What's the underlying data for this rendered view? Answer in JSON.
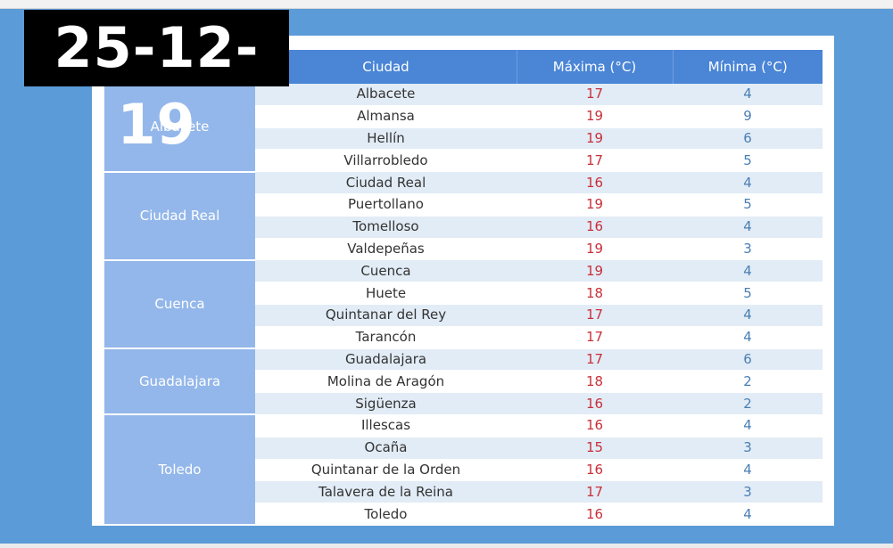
{
  "date": "25-12-19",
  "table": {
    "headers": [
      "Ciudad",
      "Máxima (°C)",
      "Mínima (°C)"
    ],
    "provinces": [
      {
        "name": "Albacete",
        "rows": [
          {
            "city": "Albacete",
            "max": "17",
            "min": "4"
          },
          {
            "city": "Almansa",
            "max": "19",
            "min": "9"
          },
          {
            "city": "Hellín",
            "max": "19",
            "min": "6"
          },
          {
            "city": "Villarrobledo",
            "max": "17",
            "min": "5"
          }
        ]
      },
      {
        "name": "Ciudad Real",
        "rows": [
          {
            "city": "Ciudad Real",
            "max": "16",
            "min": "4"
          },
          {
            "city": "Puertollano",
            "max": "19",
            "min": "5"
          },
          {
            "city": "Tomelloso",
            "max": "16",
            "min": "4"
          },
          {
            "city": "Valdepeñas",
            "max": "19",
            "min": "3"
          }
        ]
      },
      {
        "name": "Cuenca",
        "rows": [
          {
            "city": "Cuenca",
            "max": "19",
            "min": "4"
          },
          {
            "city": "Huete",
            "max": "18",
            "min": "5"
          },
          {
            "city": "Quintanar del Rey",
            "max": "17",
            "min": "4"
          },
          {
            "city": "Tarancón",
            "max": "17",
            "min": "4"
          }
        ]
      },
      {
        "name": "Guadalajara",
        "rows": [
          {
            "city": "Guadalajara",
            "max": "17",
            "min": "6"
          },
          {
            "city": "Molina de Aragón",
            "max": "18",
            "min": "2"
          },
          {
            "city": "Sigüenza",
            "max": "16",
            "min": "2"
          }
        ]
      },
      {
        "name": "Toledo",
        "rows": [
          {
            "city": "Illescas",
            "max": "16",
            "min": "4"
          },
          {
            "city": "Ocaña",
            "max": "15",
            "min": "3"
          },
          {
            "city": "Quintanar de la Orden",
            "max": "16",
            "min": "4"
          },
          {
            "city": "Talavera de la Reina",
            "max": "17",
            "min": "3"
          },
          {
            "city": "Toledo",
            "max": "16",
            "min": "4"
          }
        ]
      }
    ]
  },
  "colors": {
    "background": "#5b9bd8",
    "header": "#4a85d6",
    "province_cell": "#93b7ea",
    "alt_row": "#e2ecf6",
    "max_text": "#c8303a",
    "min_text": "#4a7fb5"
  }
}
